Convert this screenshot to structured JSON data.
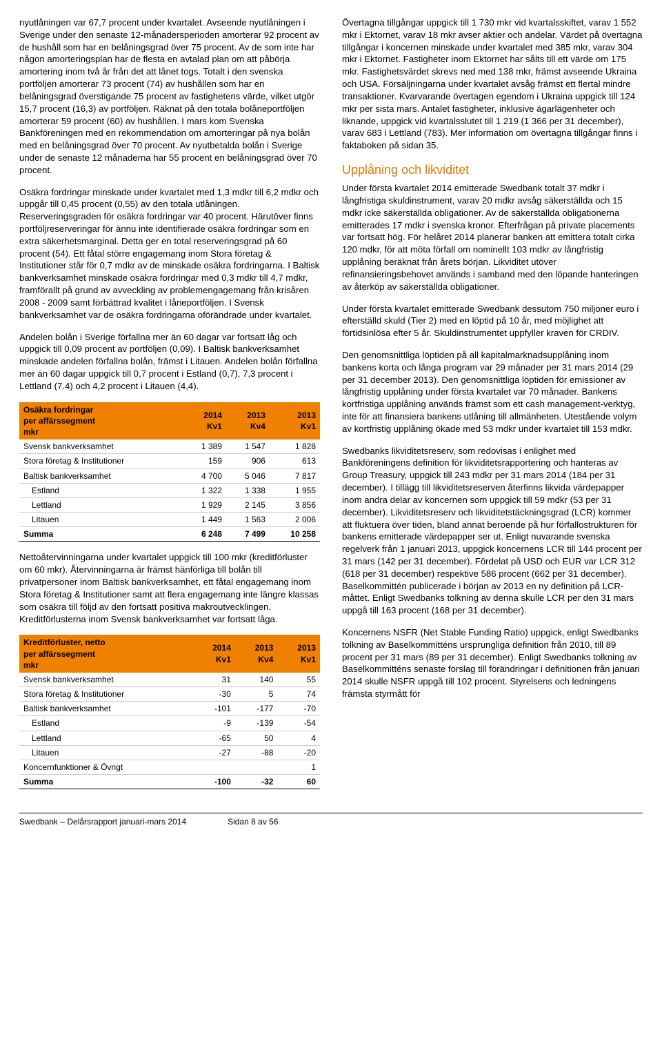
{
  "left": {
    "p1": "nyutlåningen var 67,7 procent under kvartalet. Avseende nyutlåningen i Sverige under den senaste 12-månadersperioden amorterar 92 procent av de hushåll som har en belåningsgrad över 75 procent. Av de som inte har någon amorteringsplan har de flesta en avtalad plan om att påbörja amortering inom två år från det att lånet togs. Totalt i den svenska portföljen amorterar 73 procent (74) av hushållen som har en belåningsgrad överstigande 75 procent av fastighetens värde, vilket utgör 15,7 procent (16,3) av portföljen. Räknat på den totala bolåneportföljen amorterar 59 procent (60) av hushållen. I mars kom Svenska Bankföreningen med en rekommendation om amorteringar på nya bolån med en belåningsgrad över 70 procent. Av nyutbetalda bolån i Sverige under de senaste 12 månaderna har 55 procent en belåningsgrad över 70 procent.",
    "p2": "Osäkra fordringar minskade under kvartalet med 1,3 mdkr till 6,2 mdkr och uppgår till 0,45 procent (0,55) av den totala utlåningen. Reserveringsgraden för osäkra fordringar var 40 procent. Härutöver finns portföljreserveringar för ännu inte identifierade osäkra fordringar som en extra säkerhetsmarginal. Detta ger en total reserveringsgrad på 60 procent (54). Ett fåtal större engagemang inom Stora företag & Institutioner står för 0,7 mdkr av de minskade osäkra fordringarna. I Baltisk bankverksamhet minskade osäkra fordringar med 0,3 mdkr till 4,7 mdkr, framförallt på grund av avveckling av problemengagemang från krisåren 2008 - 2009 samt förbättrad kvalitet i låneportföljen. I Svensk bankverksamhet var de osäkra fordringarna oförändrade under kvartalet.",
    "p3": "Andelen bolån i Sverige förfallna mer än 60 dagar var fortsatt låg och uppgick till 0,09 procent av portföljen (0,09). I Baltisk bankverksamhet minskade andelen förfallna bolån, främst i Litauen. Andelen bolån förfallna mer än 60 dagar uppgick till 0,7 procent i Estland (0,7), 7,3 procent i Lettland (7.4) och 4,2 procent i Litauen (4,4).",
    "p4": "Nettoåtervinningarna under kvartalet uppgick till 100 mkr (kreditförluster om 60 mkr). Återvinningarna är främst hänförliga till bolån till privatpersoner inom Baltisk bankverksamhet, ett fåtal engagemang inom Stora företag & Institutioner samt att flera engagemang inte längre klassas som osäkra till följd av den fortsatt positiva makroutvecklingen. Kreditförlusterna inom Svensk bankverksamhet var fortsatt låga.",
    "table1": {
      "header_lines": [
        "Osäkra fordringar",
        "per affärssegment",
        "mkr"
      ],
      "cols": [
        "2014",
        "2013",
        "2013"
      ],
      "cols2": [
        "Kv1",
        "Kv4",
        "Kv1"
      ],
      "rows": [
        {
          "label": "Svensk bankverksamhet",
          "vals": [
            "1 389",
            "1 547",
            "1 828"
          ]
        },
        {
          "label": "Stora företag & Institutioner",
          "vals": [
            "159",
            "906",
            "613"
          ]
        },
        {
          "label": "Baltisk bankverksamhet",
          "vals": [
            "4 700",
            "5 046",
            "7 817"
          ]
        },
        {
          "label": "Estland",
          "indent": true,
          "vals": [
            "1 322",
            "1 338",
            "1 955"
          ]
        },
        {
          "label": "Lettland",
          "indent": true,
          "vals": [
            "1 929",
            "2 145",
            "3 856"
          ]
        },
        {
          "label": "Litauen",
          "indent": true,
          "vals": [
            "1 449",
            "1 563",
            "2 006"
          ]
        }
      ],
      "sum": {
        "label": "Summa",
        "vals": [
          "6 248",
          "7 499",
          "10 258"
        ]
      }
    },
    "table2": {
      "header_lines": [
        "Kreditförluster, netto",
        "per affärssegment",
        "mkr"
      ],
      "cols": [
        "2014",
        "2013",
        "2013"
      ],
      "cols2": [
        "Kv1",
        "Kv4",
        "Kv1"
      ],
      "rows": [
        {
          "label": "Svensk bankverksamhet",
          "vals": [
            "31",
            "140",
            "55"
          ]
        },
        {
          "label": "Stora företag & Institutioner",
          "vals": [
            "-30",
            "5",
            "74"
          ]
        },
        {
          "label": "Baltisk bankverksamhet",
          "vals": [
            "-101",
            "-177",
            "-70"
          ]
        },
        {
          "label": "Estland",
          "indent": true,
          "vals": [
            "-9",
            "-139",
            "-54"
          ]
        },
        {
          "label": "Lettland",
          "indent": true,
          "vals": [
            "-65",
            "50",
            "4"
          ]
        },
        {
          "label": "Litauen",
          "indent": true,
          "vals": [
            "-27",
            "-88",
            "-20"
          ]
        },
        {
          "label": "Koncernfunktioner & Övrigt",
          "vals": [
            "",
            "",
            "1"
          ]
        }
      ],
      "sum": {
        "label": "Summa",
        "vals": [
          "-100",
          "-32",
          "60"
        ]
      }
    }
  },
  "right": {
    "p1": "Övertagna tillgångar uppgick till 1 730 mkr vid kvartalsskiftet, varav 1 552 mkr i Ektornet, varav 18 mkr avser aktier och andelar. Värdet på övertagna tillgångar i koncernen minskade under kvartalet med 385 mkr, varav 304 mkr i Ektornet. Fastigheter inom Ektornet har sålts till ett värde om 175 mkr. Fastighetsvärdet skrevs ned med 138 mkr, främst avseende Ukraina och USA. Försäljningarna under kvartalet avsåg främst ett flertal mindre transaktioner. Kvarvarande övertagen egendom i Ukraina uppgick till 124 mkr per sista mars. Antalet fastigheter, inklusive ägarlägenheter och liknande, uppgick vid kvartalsslutet till 1 219 (1 366 per 31 december), varav 683 i Lettland (783). Mer information om övertagna tillgångar finns i faktaboken på sidan 35.",
    "h2": "Upplåning och likviditet",
    "p2": "Under första kvartalet 2014 emitterade Swedbank totalt 37 mdkr i långfristiga skuldinstrument, varav 20 mdkr avsåg säkerställda och 15 mdkr icke säkerställda obligationer. Av de säkerställda obligationerna emitterades 17 mdkr i svenska kronor. Efterfrågan på private placements var fortsatt hög. För helåret 2014 planerar banken att emittera totalt cirka 120 mdkr, för att möta förfall om nominellt 103 mdkr av långfristig upplåning beräknat från årets början. Likviditet utöver refinansieringsbehovet används i samband med den löpande hanteringen av återköp av säkerställda obligationer.",
    "p3": "Under första kvartalet emitterade Swedbank dessutom 750 miljoner euro i efterställd skuld (Tier 2) med en löptid på 10 år, med möjlighet att förtidsinlösa efter 5 år. Skuldinstrumentet uppfyller kraven för CRDIV.",
    "p4": "Den genomsnittliga löptiden på all kapitalmarknadsupplåning inom bankens korta och långa program var 29 månader per 31 mars 2014 (29 per 31 december 2013). Den genomsnittliga löptiden för emissioner av långfristig upplåning under första kvartalet var 70 månader. Bankens kortfristiga upplåning används främst som ett cash management-verktyg, inte för att finansiera bankens utlåning till allmänheten. Utestående volym av kortfristig upplåning ökade med 53 mdkr under kvartalet till 153 mdkr.",
    "p5": "Swedbanks likviditetsreserv, som redovisas i enlighet med Bankföreningens definition för likviditetsrapportering och hanteras av Group Treasury, uppgick till 243 mdkr per 31 mars 2014 (184 per 31 december). I tillägg till likviditetsreserven återfinns likvida värdepapper inom andra delar av koncernen som uppgick till 59 mdkr (53 per 31 december). Likviditetsreserv och likviditetstäckningsgrad (LCR) kommer att fluktuera över tiden, bland annat beroende på hur förfallostrukturen för bankens emitterade värdepapper ser ut. Enligt nuvarande svenska regelverk från 1 januari 2013, uppgick koncernens LCR till 144 procent per 31 mars (142 per 31 december). Fördelat på USD och EUR var LCR 312 (618 per 31 december) respektive 586 procent (662 per 31 december). Baselkommittén publicerade i början av 2013 en ny definition på LCR-måttet. Enligt Swedbanks tolkning av denna skulle LCR per den 31 mars uppgå till 163 procent (168 per 31 december).",
    "p6": "Koncernens NSFR (Net Stable Funding Ratio) uppgick, enligt Swedbanks tolkning av Baselkommitténs ursprungliga definition från 2010, till 89 procent per 31 mars (89 per 31 december). Enligt Swedbanks tolkning av Baselkommitténs senaste förslag till förändringar i definitionen från januari 2014 skulle NSFR uppgå till 102 procent. Styrelsens och ledningens främsta styrmått för"
  },
  "footer": {
    "left": "Swedbank – Delårsrapport januari-mars 2014",
    "right": "Sidan 8 av 56"
  }
}
